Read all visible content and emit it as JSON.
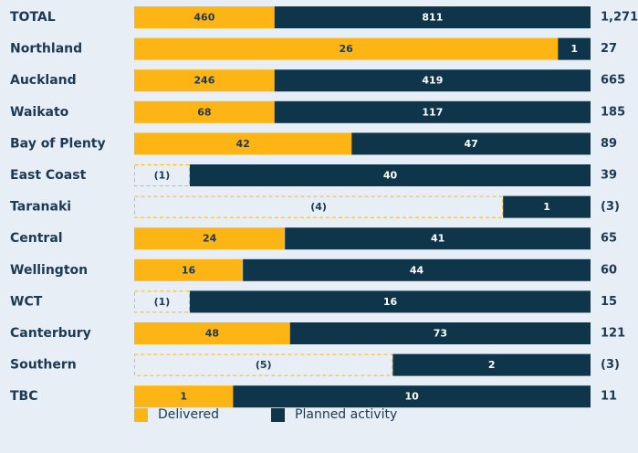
{
  "chart_data": {
    "type": "bar",
    "orientation": "horizontal",
    "stacked": true,
    "colors": {
      "delivered": "#fdb515",
      "planned": "#0e3549",
      "background": "#e7eef6",
      "negative_outline": "#fdb515",
      "label_text": "#1c3a52"
    },
    "categories": [
      "TOTAL",
      "Northland",
      "Auckland",
      "Waikato",
      "Bay of Plenty",
      "East Coast",
      "Taranaki",
      "Central",
      "Wellington",
      "WCT",
      "Canterbury",
      "Southern",
      "TBC"
    ],
    "series": [
      {
        "name": "Delivered",
        "values": [
          460,
          26,
          246,
          68,
          42,
          -1,
          -4,
          24,
          16,
          -1,
          48,
          -5,
          1
        ]
      },
      {
        "name": "Planned activity",
        "values": [
          811,
          1,
          419,
          117,
          47,
          40,
          1,
          41,
          44,
          16,
          73,
          2,
          10
        ]
      }
    ],
    "delivered_labels": [
      "460",
      "26",
      "246",
      "68",
      "42",
      "(1)",
      "(4)",
      "24",
      "16",
      "(1)",
      "48",
      "(5)",
      "1"
    ],
    "planned_labels": [
      "811",
      "1",
      "419",
      "117",
      "47",
      "40",
      "1",
      "41",
      "44",
      "16",
      "73",
      "2",
      "10"
    ],
    "totals": [
      "1,271",
      "27",
      "665",
      "185",
      "89",
      "39",
      "(3)",
      "65",
      "60",
      "15",
      "121",
      "(3)",
      "11"
    ],
    "bar_shares": {
      "delivered": [
        0.3075,
        0.9286,
        0.3075,
        0.3075,
        0.4764,
        0.1219,
        0.8084,
        0.3304,
        0.2383,
        0.1219,
        0.3415,
        0.5668,
        0.2167
      ]
    },
    "negative_delivered": [
      false,
      false,
      false,
      false,
      false,
      true,
      true,
      false,
      false,
      true,
      false,
      true,
      false
    ],
    "legend_position": "bottom"
  },
  "legend": {
    "delivered_label": "Delivered",
    "planned_label": "Planned activity"
  }
}
